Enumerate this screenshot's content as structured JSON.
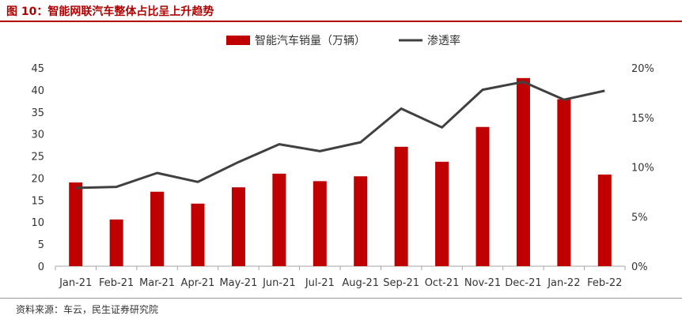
{
  "figure": {
    "title": "图 10：智能网联汽车整体占比呈上升趋势",
    "source": "资料来源：车云，民生证券研究院"
  },
  "colors": {
    "bar": "#c00000",
    "line": "#404040",
    "title": "#b00000"
  },
  "chart_data": {
    "type": "bar",
    "categories": [
      "Jan-21",
      "Feb-21",
      "Mar-21",
      "Apr-21",
      "May-21",
      "Jun-21",
      "Jul-21",
      "Aug-21",
      "Sep-21",
      "Oct-21",
      "Nov-21",
      "Dec-21",
      "Jan-22",
      "Feb-22"
    ],
    "series": [
      {
        "name": "智能汽车销量（万辆）",
        "type": "bar",
        "axis": "left",
        "values": [
          19.0,
          10.6,
          16.9,
          14.2,
          17.9,
          21.0,
          19.3,
          20.4,
          27.1,
          23.7,
          31.6,
          42.7,
          37.9,
          20.8
        ]
      },
      {
        "name": "渗透率",
        "type": "line",
        "axis": "right",
        "values": [
          7.9,
          8.0,
          9.4,
          8.5,
          10.5,
          12.3,
          11.6,
          12.5,
          15.9,
          14.0,
          17.8,
          18.6,
          16.8,
          17.7
        ]
      }
    ],
    "y_left": {
      "lim": [
        0,
        45
      ],
      "ticks": [
        "0",
        "5",
        "10",
        "15",
        "20",
        "25",
        "30",
        "35",
        "40",
        "45"
      ]
    },
    "y_right": {
      "lim": [
        0,
        20
      ],
      "ticks": [
        "0%",
        "5%",
        "10%",
        "15%",
        "20%"
      ]
    },
    "legend": "top-center",
    "grid": false
  }
}
